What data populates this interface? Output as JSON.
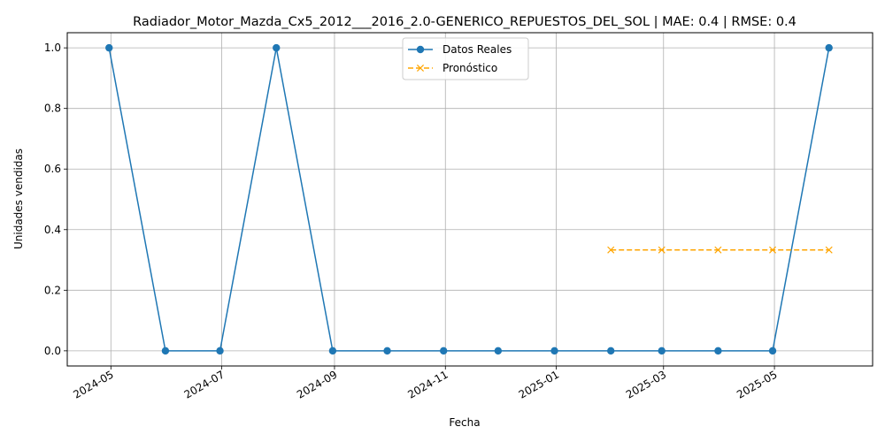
{
  "chart_data": {
    "type": "line",
    "title": "Radiador_Motor_Mazda_Cx5_2012___2016_2.0-GENERICO_REPUESTOS_DEL_SOL | MAE: 0.4 | RMSE: 0.4",
    "xlabel": "Fecha",
    "ylabel": "Unidades vendidas",
    "xlim": [
      "2024-04-07",
      "2025-06-24"
    ],
    "ylim": [
      -0.05,
      1.05
    ],
    "x_ticks": [
      "2024-05",
      "2024-07",
      "2024-09",
      "2024-11",
      "2025-01",
      "2025-03",
      "2025-05"
    ],
    "y_ticks": [
      "0.0",
      "0.2",
      "0.4",
      "0.6",
      "0.8",
      "1.0"
    ],
    "grid": true,
    "legend_position": "top-center",
    "series": [
      {
        "name": "Datos Reales",
        "color": "#1f77b4",
        "line_style": "solid",
        "marker": "circle",
        "x": [
          "2024-04-30",
          "2024-05-31",
          "2024-06-30",
          "2024-07-31",
          "2024-08-31",
          "2024-09-30",
          "2024-10-31",
          "2024-11-30",
          "2024-12-31",
          "2025-01-31",
          "2025-02-28",
          "2025-03-31",
          "2025-04-30",
          "2025-05-31"
        ],
        "values": [
          1,
          0,
          0,
          1,
          0,
          0,
          0,
          0,
          0,
          0,
          0,
          0,
          0,
          1
        ]
      },
      {
        "name": "Pronóstico",
        "color": "#ffa500",
        "line_style": "dashed",
        "marker": "x",
        "x": [
          "2025-01-31",
          "2025-02-28",
          "2025-03-31",
          "2025-04-30",
          "2025-05-31"
        ],
        "values": [
          0.333,
          0.333,
          0.333,
          0.333,
          0.333
        ]
      }
    ]
  }
}
